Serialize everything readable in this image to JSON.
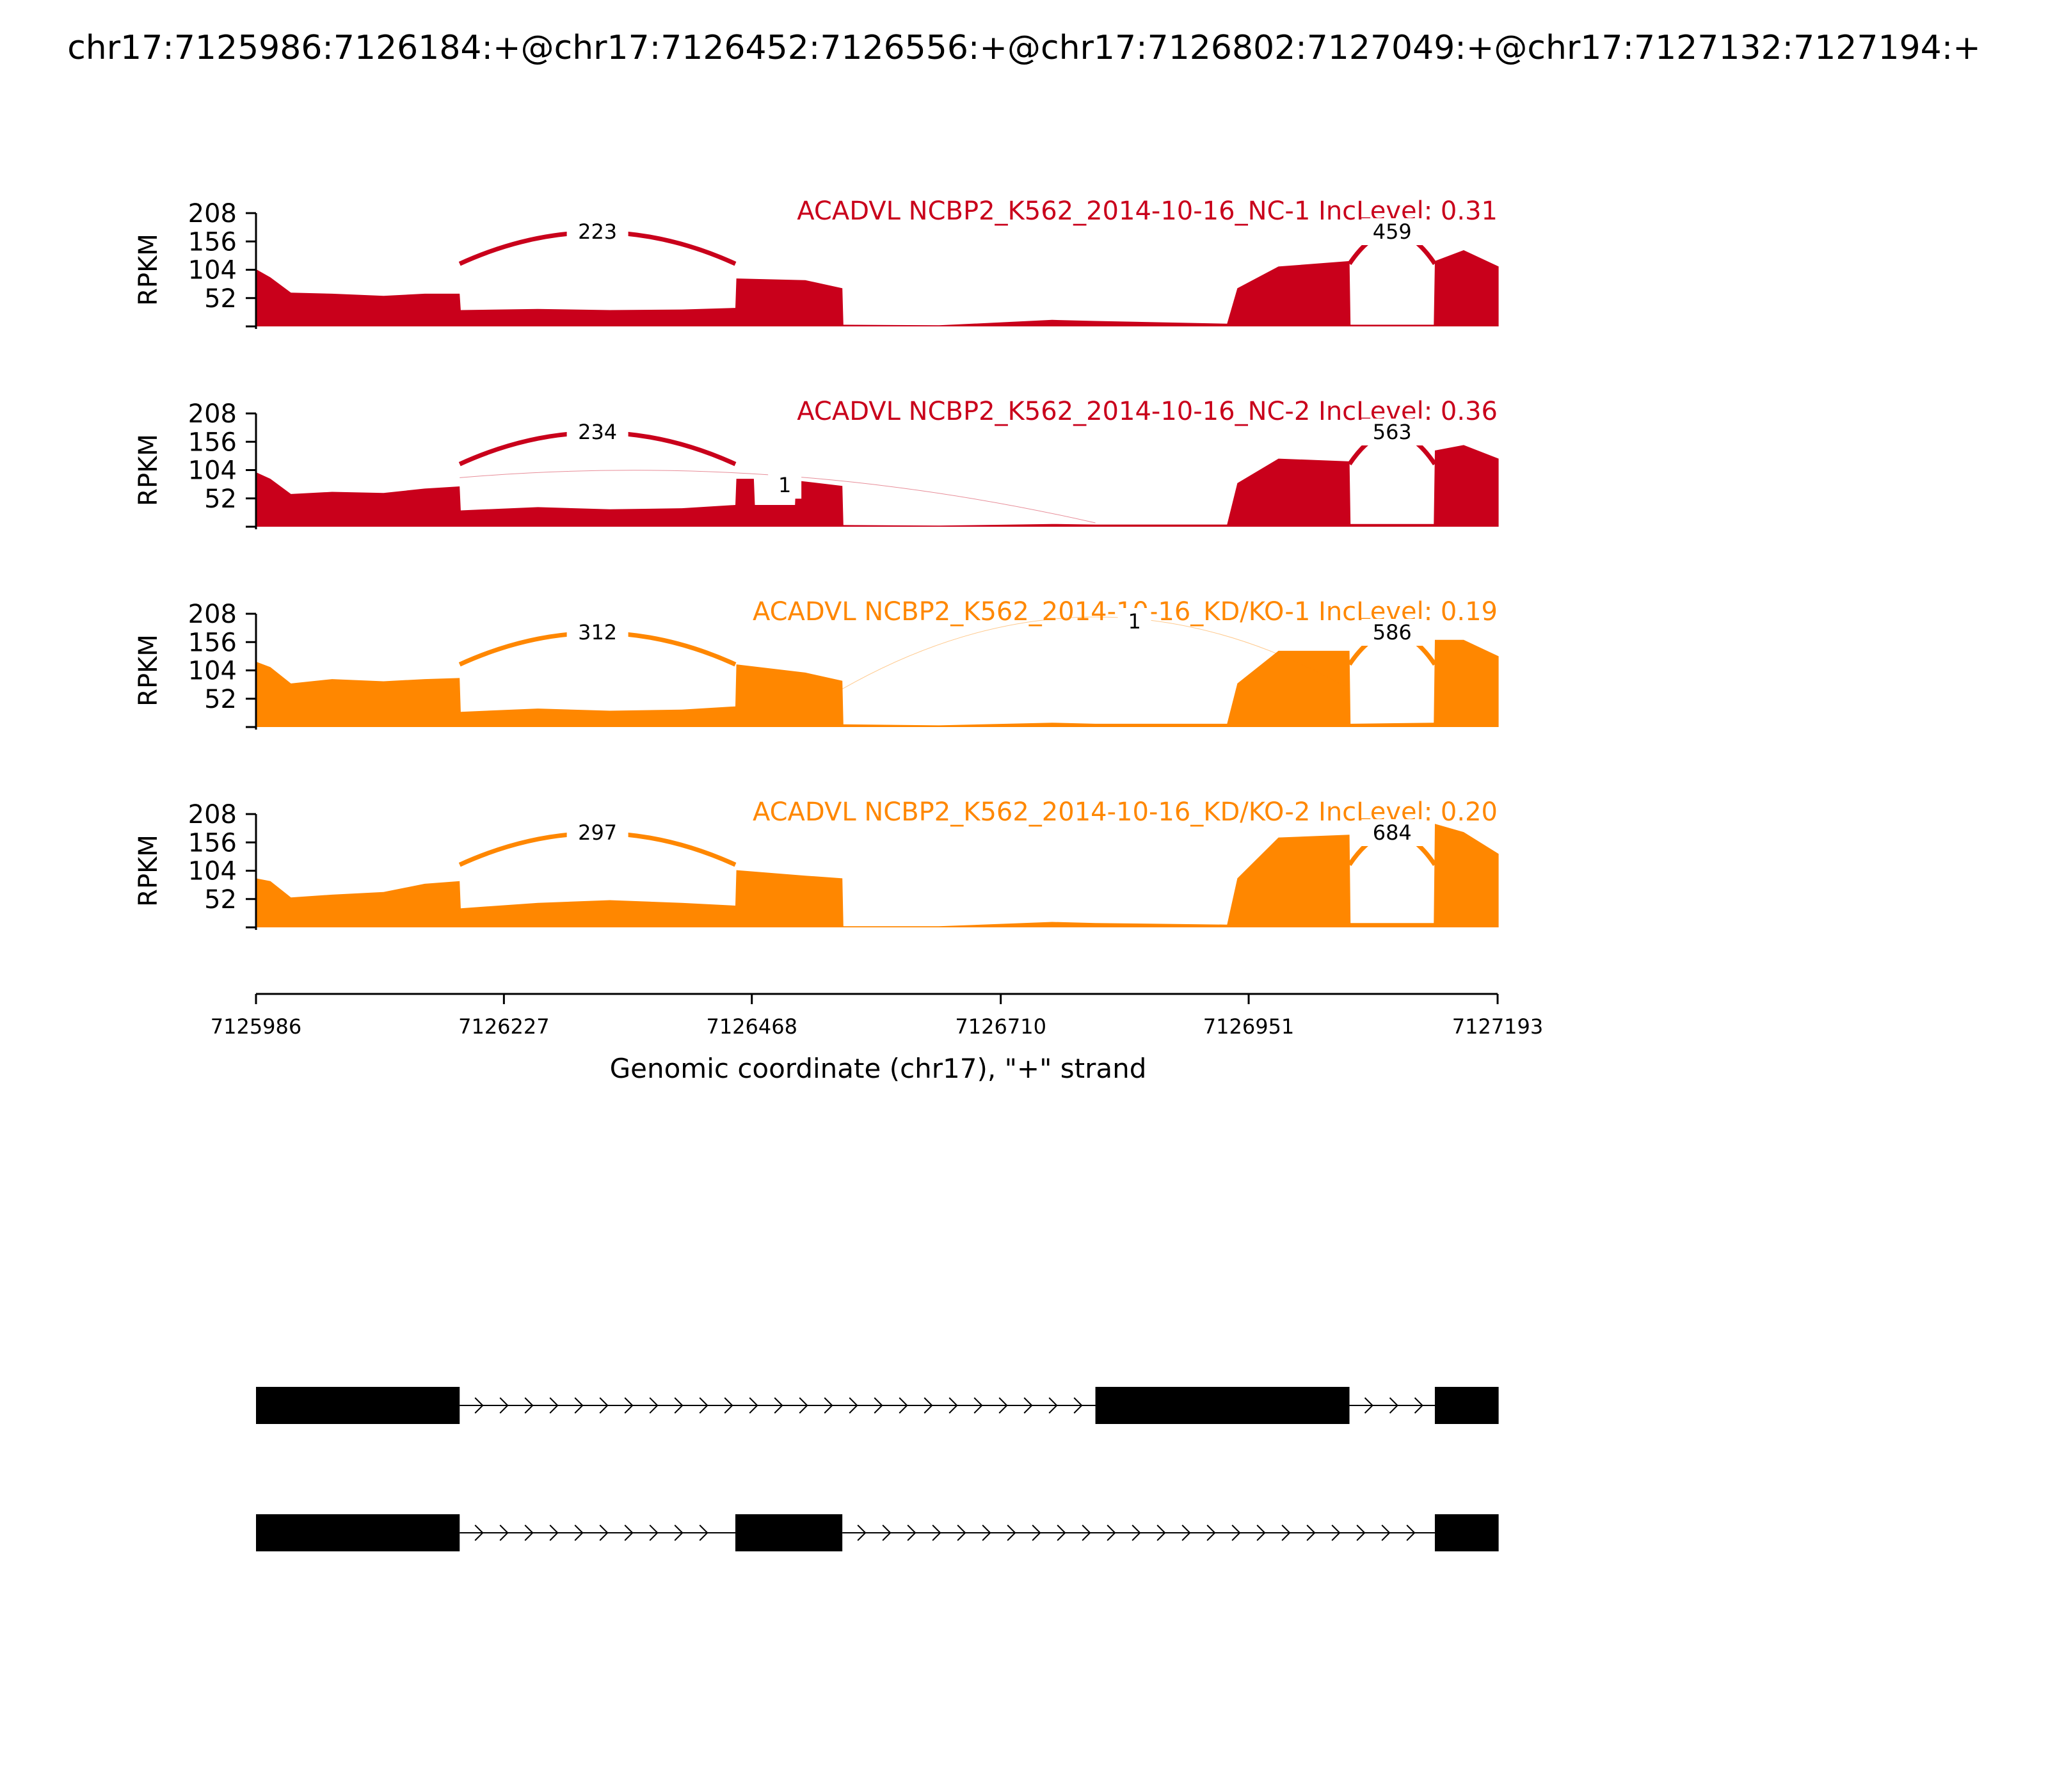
{
  "chart_data": {
    "type": "sashimi",
    "title": "chr17:7125986:7126184:+@chr17:7126452:7126556:+@chr17:7126802:7127049:+@chr17:7127132:7127194:+",
    "xlabel": "Genomic coordinate (chr17), \"+\" strand",
    "ylabel": "RPKM",
    "xlim": [
      7125986,
      7127193
    ],
    "ylim": [
      0,
      208
    ],
    "x_ticks": [
      "7125986",
      "7126227",
      "7126468",
      "7126710",
      "7126951",
      "7127193"
    ],
    "y_ticks": [
      "52",
      "104",
      "156",
      "208"
    ],
    "exons": [
      [
        7125986,
        7126184
      ],
      [
        7126452,
        7126556
      ],
      [
        7126802,
        7127049
      ],
      [
        7127132,
        7127194
      ]
    ],
    "panels": [
      {
        "label": "ACADVL NCBP2_K562_2014-10-16_NC-1 IncLevel: 0.31",
        "color": "#C9001B",
        "profile": [
          [
            7125986,
            105
          ],
          [
            7126000,
            90
          ],
          [
            7126020,
            62
          ],
          [
            7126060,
            60
          ],
          [
            7126110,
            56
          ],
          [
            7126150,
            60
          ],
          [
            7126184,
            60
          ],
          [
            7126185,
            30
          ],
          [
            7126260,
            32
          ],
          [
            7126330,
            30
          ],
          [
            7126400,
            31
          ],
          [
            7126452,
            34
          ],
          [
            7126453,
            88
          ],
          [
            7126520,
            85
          ],
          [
            7126556,
            70
          ],
          [
            7126557,
            3
          ],
          [
            7126650,
            2
          ],
          [
            7126760,
            12
          ],
          [
            7126802,
            10
          ],
          [
            7126930,
            5
          ],
          [
            7126940,
            70
          ],
          [
            7126980,
            110
          ],
          [
            7127049,
            120
          ],
          [
            7127050,
            3
          ],
          [
            7127131,
            3
          ],
          [
            7127132,
            120
          ],
          [
            7127160,
            140
          ],
          [
            7127194,
            110
          ]
        ],
        "junctions": [
          {
            "start": 7126184,
            "end": 7126452,
            "count": "223",
            "above": true
          },
          {
            "start": 7127049,
            "end": 7127132,
            "count": "459",
            "above": true
          }
        ]
      },
      {
        "label": "ACADVL NCBP2_K562_2014-10-16_NC-2 IncLevel: 0.36",
        "color": "#C9001B",
        "profile": [
          [
            7125986,
            100
          ],
          [
            7126000,
            88
          ],
          [
            7126020,
            60
          ],
          [
            7126060,
            64
          ],
          [
            7126110,
            62
          ],
          [
            7126150,
            70
          ],
          [
            7126184,
            74
          ],
          [
            7126185,
            30
          ],
          [
            7126260,
            36
          ],
          [
            7126330,
            32
          ],
          [
            7126400,
            34
          ],
          [
            7126452,
            40
          ],
          [
            7126453,
            88
          ],
          [
            7126470,
            88
          ],
          [
            7126471,
            40
          ],
          [
            7126510,
            40
          ],
          [
            7126511,
            85
          ],
          [
            7126556,
            75
          ],
          [
            7126557,
            3
          ],
          [
            7126650,
            2
          ],
          [
            7126760,
            5
          ],
          [
            7126802,
            4
          ],
          [
            7126930,
            4
          ],
          [
            7126940,
            80
          ],
          [
            7126980,
            125
          ],
          [
            7127049,
            120
          ],
          [
            7127050,
            5
          ],
          [
            7127131,
            5
          ],
          [
            7127132,
            140
          ],
          [
            7127160,
            150
          ],
          [
            7127194,
            125
          ]
        ],
        "junctions": [
          {
            "start": 7126184,
            "end": 7126452,
            "count": "234",
            "above": true
          },
          {
            "start": 7126184,
            "end": 7126802,
            "count": "1",
            "above": false
          },
          {
            "start": 7127049,
            "end": 7127132,
            "count": "563",
            "above": true
          }
        ]
      },
      {
        "label": "ACADVL NCBP2_K562_2014-10-16_KD/KO-1 IncLevel: 0.19",
        "color": "#FF8700",
        "profile": [
          [
            7125986,
            120
          ],
          [
            7126000,
            110
          ],
          [
            7126020,
            80
          ],
          [
            7126060,
            88
          ],
          [
            7126110,
            84
          ],
          [
            7126150,
            88
          ],
          [
            7126184,
            90
          ],
          [
            7126185,
            28
          ],
          [
            7126260,
            34
          ],
          [
            7126330,
            30
          ],
          [
            7126400,
            32
          ],
          [
            7126452,
            38
          ],
          [
            7126453,
            115
          ],
          [
            7126520,
            100
          ],
          [
            7126556,
            85
          ],
          [
            7126557,
            5
          ],
          [
            7126650,
            3
          ],
          [
            7126760,
            8
          ],
          [
            7126802,
            6
          ],
          [
            7126930,
            6
          ],
          [
            7126940,
            80
          ],
          [
            7126980,
            140
          ],
          [
            7127049,
            140
          ],
          [
            7127050,
            6
          ],
          [
            7127131,
            8
          ],
          [
            7127132,
            160
          ],
          [
            7127160,
            160
          ],
          [
            7127194,
            130
          ]
        ],
        "junctions": [
          {
            "start": 7126184,
            "end": 7126452,
            "count": "312",
            "above": true
          },
          {
            "start": 7126556,
            "end": 7127049,
            "count": "1",
            "above": true
          },
          {
            "start": 7127049,
            "end": 7127132,
            "count": "586",
            "above": true
          }
        ]
      },
      {
        "label": "ACADVL NCBP2_K562_2014-10-16_KD/KO-2 IncLevel: 0.20",
        "color": "#FF8700",
        "profile": [
          [
            7125986,
            90
          ],
          [
            7126000,
            85
          ],
          [
            7126020,
            55
          ],
          [
            7126060,
            60
          ],
          [
            7126110,
            65
          ],
          [
            7126150,
            80
          ],
          [
            7126184,
            85
          ],
          [
            7126185,
            35
          ],
          [
            7126260,
            45
          ],
          [
            7126330,
            50
          ],
          [
            7126400,
            45
          ],
          [
            7126452,
            40
          ],
          [
            7126453,
            105
          ],
          [
            7126520,
            95
          ],
          [
            7126556,
            90
          ],
          [
            7126557,
            2
          ],
          [
            7126650,
            2
          ],
          [
            7126760,
            10
          ],
          [
            7126802,
            8
          ],
          [
            7126930,
            5
          ],
          [
            7126940,
            90
          ],
          [
            7126980,
            165
          ],
          [
            7127049,
            170
          ],
          [
            7127050,
            8
          ],
          [
            7127131,
            8
          ],
          [
            7127132,
            190
          ],
          [
            7127160,
            175
          ],
          [
            7127194,
            135
          ]
        ],
        "junctions": [
          {
            "start": 7126184,
            "end": 7126452,
            "count": "297",
            "above": true
          },
          {
            "start": 7127049,
            "end": 7127132,
            "count": "684",
            "above": true
          }
        ]
      }
    ],
    "isoforms": [
      {
        "exons": [
          [
            7125986,
            7126184
          ],
          [
            7126802,
            7127049
          ],
          [
            7127132,
            7127194
          ]
        ]
      },
      {
        "exons": [
          [
            7125986,
            7126184
          ],
          [
            7126452,
            7126556
          ],
          [
            7127132,
            7127194
          ]
        ]
      }
    ]
  }
}
